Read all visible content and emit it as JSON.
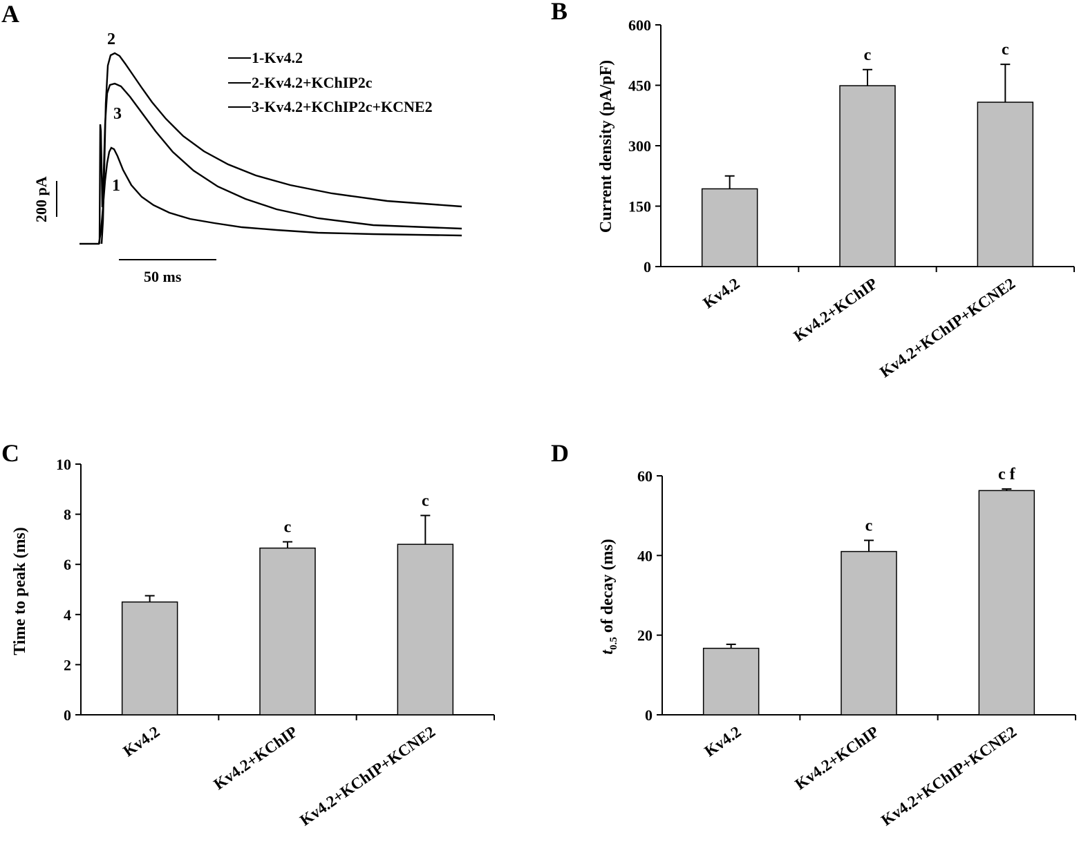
{
  "trace_panel": {
    "label": "A",
    "legend": [
      "1-Kv4.2",
      "2-Kv4.2+KChIP2c",
      "3-Kv4.2+KChIP2c+KCNE2"
    ],
    "trace_labels": [
      "1",
      "2",
      "3"
    ],
    "scale_y_label": "200 pA",
    "scale_x_label": "50 ms"
  },
  "chart_data": [
    {
      "panel": "B",
      "type": "bar",
      "categories": [
        "Kv4.2",
        "Kv4.2+KChIP",
        "Kv4.2+KChIP+KCNE2"
      ],
      "values": [
        193,
        449,
        408
      ],
      "errors": [
        32,
        40,
        94
      ],
      "annotations": [
        "",
        "c",
        "c"
      ],
      "ylabel": "Current density (pA/pF)",
      "ylim": [
        0,
        600
      ],
      "yticks": [
        0,
        150,
        300,
        450,
        600
      ]
    },
    {
      "panel": "C",
      "type": "bar",
      "categories": [
        "Kv4.2",
        "Kv4.2+KChIP",
        "Kv4.2+KChIP+KCNE2"
      ],
      "values": [
        4.5,
        6.65,
        6.8
      ],
      "errors": [
        0.25,
        0.25,
        1.15
      ],
      "annotations": [
        "",
        "c",
        "c"
      ],
      "ylabel": "Time to peak (ms)",
      "ylim": [
        0,
        10
      ],
      "yticks": [
        0,
        2,
        4,
        6,
        8,
        10
      ]
    },
    {
      "panel": "D",
      "type": "bar",
      "categories": [
        "Kv4.2",
        "Kv4.2+KChIP",
        "Kv4.2+KChIP+KCNE2"
      ],
      "values": [
        16.7,
        41,
        56.3
      ],
      "errors": [
        1,
        2.8,
        0.4
      ],
      "annotations": [
        "",
        "c",
        "c f"
      ],
      "ylabel_main": "t",
      "ylabel_sub": "0.5",
      "ylabel_rest": " of decay (ms)",
      "ylim": [
        0,
        60
      ],
      "yticks": [
        0,
        20,
        40,
        60
      ]
    }
  ]
}
